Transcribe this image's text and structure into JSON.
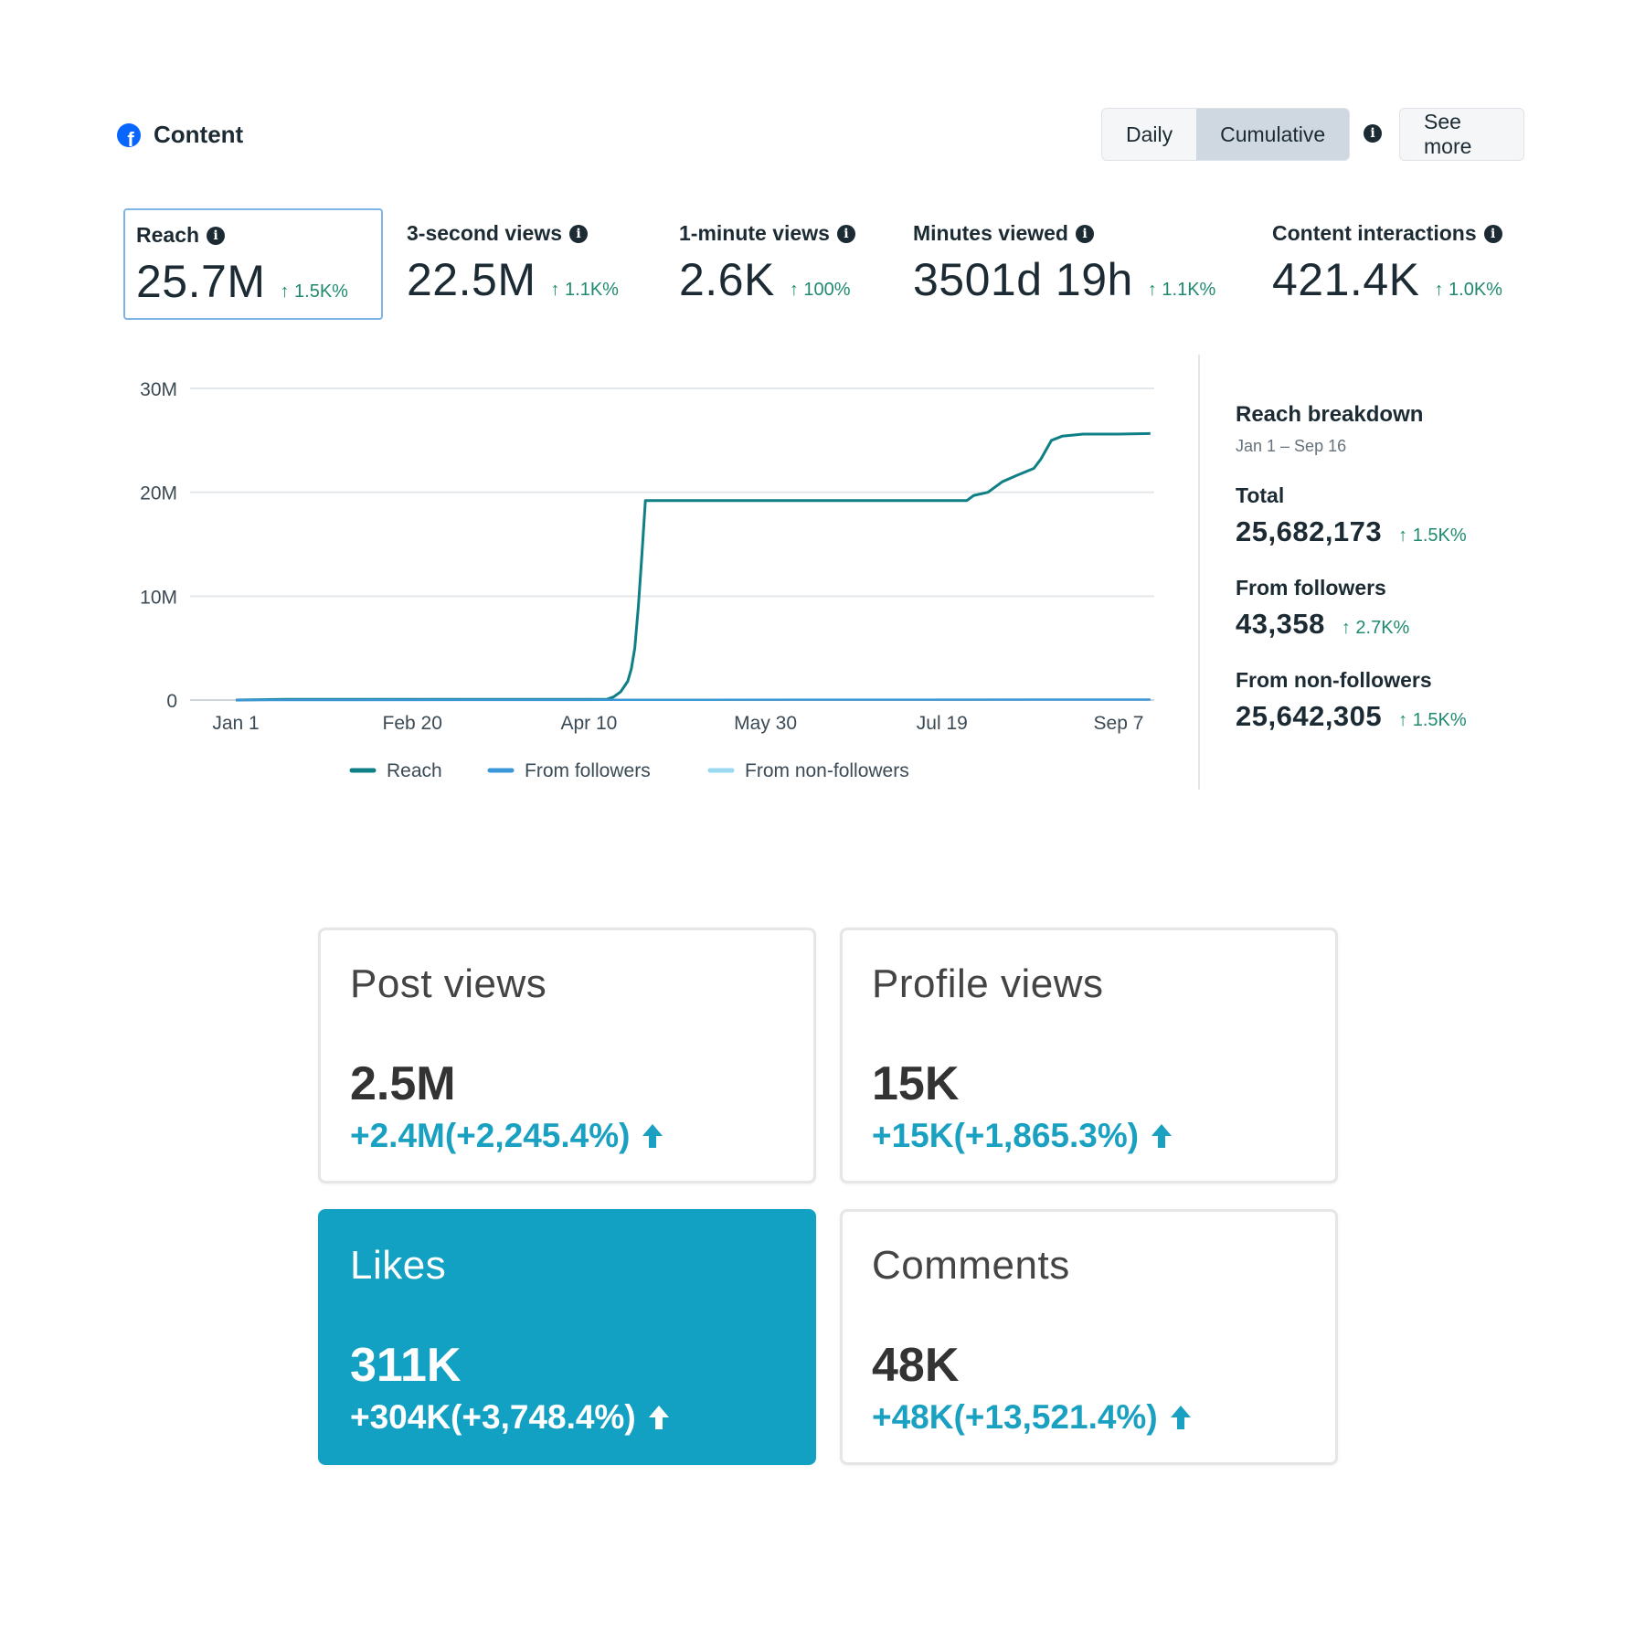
{
  "header": {
    "title": "Content",
    "toggle": [
      "Daily",
      "Cumulative"
    ],
    "active_toggle": "Cumulative",
    "see_more": "See more",
    "icons": {
      "brand": "facebook-icon",
      "info": "info-icon"
    },
    "brand_color": "#0866ff"
  },
  "metrics": [
    {
      "label": "Reach",
      "value": "25.7M",
      "change": "↑ 1.5K%",
      "selected": true,
      "info": true
    },
    {
      "label": "3-second views",
      "value": "22.5M",
      "change": "↑ 1.1K%",
      "info": true
    },
    {
      "label": "1-minute views",
      "value": "2.6K",
      "change": "↑ 100%",
      "info": true
    },
    {
      "label": "Minutes viewed",
      "value": "3501d 19h",
      "change": "↑ 1.1K%",
      "info": true
    },
    {
      "label": "Content interactions",
      "value": "421.4K",
      "change": "↑ 1.0K%",
      "info": true
    }
  ],
  "chart_data": {
    "type": "line",
    "xlabel": "",
    "ylabel": "",
    "x_ticks": [
      "Jan 1",
      "Feb 20",
      "Apr 10",
      "May 30",
      "Jul 19",
      "Sep 7"
    ],
    "y_ticks": [
      "0",
      "10M",
      "20M",
      "30M"
    ],
    "ylim": [
      0,
      30000000
    ],
    "grid": true,
    "legend_position": "bottom",
    "series": [
      {
        "name": "Reach",
        "color": "#0f7f86",
        "points": [
          [
            "Jan 1",
            0
          ],
          [
            "Jan 15",
            60000
          ],
          [
            "Mar 1",
            60000
          ],
          [
            "Apr 15",
            60000
          ],
          [
            "Apr 17",
            300000
          ],
          [
            "Apr 19",
            800000
          ],
          [
            "Apr 21",
            1800000
          ],
          [
            "Apr 22",
            3000000
          ],
          [
            "Apr 23",
            5000000
          ],
          [
            "Apr 24",
            9000000
          ],
          [
            "Apr 25",
            14000000
          ],
          [
            "Apr 26",
            19200000
          ],
          [
            "Jun 15",
            19200000
          ],
          [
            "Jul 26",
            19200000
          ],
          [
            "Jul 28",
            19700000
          ],
          [
            "Aug 1",
            20000000
          ],
          [
            "Aug 5",
            21000000
          ],
          [
            "Aug 9",
            21600000
          ],
          [
            "Aug 14",
            22300000
          ],
          [
            "Aug 16",
            23200000
          ],
          [
            "Aug 19",
            25000000
          ],
          [
            "Aug 22",
            25400000
          ],
          [
            "Aug 28",
            25600000
          ],
          [
            "Sep 7",
            25600000
          ],
          [
            "Sep 16",
            25650000
          ]
        ]
      },
      {
        "name": "From followers",
        "color": "#3c97d8",
        "points": [
          [
            "Jan 1",
            0
          ],
          [
            "Apr 15",
            20000
          ],
          [
            "Sep 16",
            43358
          ]
        ]
      },
      {
        "name": "From non-followers",
        "color": "#9ad9ef",
        "points": []
      }
    ]
  },
  "breakdown": {
    "title": "Reach breakdown",
    "range": "Jan 1 – Sep 16",
    "items": [
      {
        "label": "Total",
        "value": "25,682,173",
        "change": "↑ 1.5K%"
      },
      {
        "label": "From followers",
        "value": "43,358",
        "change": "↑ 2.7K%"
      },
      {
        "label": "From non-followers",
        "value": "25,642,305",
        "change": "↑ 1.5K%"
      }
    ]
  },
  "cards": [
    {
      "title": "Post views",
      "value": "2.5M",
      "change": "+2.4M(+2,245.4%)"
    },
    {
      "title": "Profile views",
      "value": "15K",
      "change": "+15K(+1,865.3%)"
    },
    {
      "title": "Likes",
      "value": "311K",
      "change": "+304K(+3,748.4%)",
      "highlight": true
    },
    {
      "title": "Comments",
      "value": "48K",
      "change": "+48K(+13,521.4%)"
    }
  ],
  "colors": {
    "accent_green": "#1f8a70",
    "card_highlight": "#13a1c3",
    "card_change": "#1aa1c1"
  }
}
